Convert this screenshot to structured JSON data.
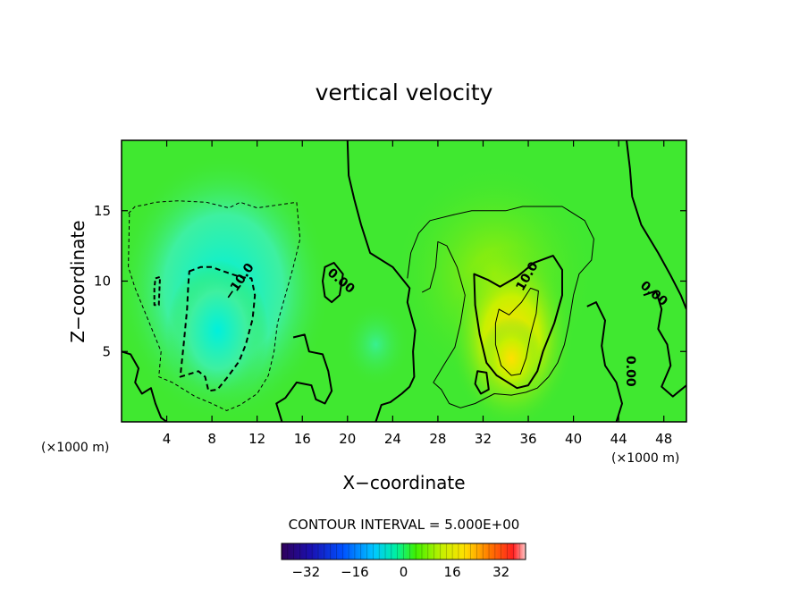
{
  "chart_data": {
    "type": "heatmap",
    "title": "vertical velocity",
    "xlabel": "X−coordinate",
    "ylabel": "Z−coordinate",
    "x_unit": "(×1000 m)",
    "xlim": [
      0,
      50
    ],
    "ylim": [
      0,
      20
    ],
    "xticks": [
      4,
      8,
      12,
      16,
      20,
      24,
      28,
      32,
      36,
      40,
      44,
      48
    ],
    "xtick_labels": [
      "4",
      "8",
      "12",
      "16",
      "20",
      "24",
      "28",
      "32",
      "36",
      "40",
      "44",
      "48"
    ],
    "yticks": [
      5,
      10,
      15
    ],
    "ytick_labels": [
      "5",
      "10",
      "15"
    ],
    "contour_interval_text": "CONTOUR INTERVAL = 5.000E+00",
    "contour_interval": 5.0,
    "contour_labels": [
      "−10.0",
      "10.0",
      "0.00",
      "0.00",
      "0.00"
    ],
    "colorbar": {
      "range": [
        -40,
        40
      ],
      "ticks": [
        -32,
        -16,
        0,
        16,
        32
      ],
      "tick_labels": [
        "−32",
        "−16",
        "0",
        "16",
        "32"
      ]
    },
    "features": [
      {
        "kind": "downdraft",
        "x": 8.5,
        "z": 6.5,
        "value": -14
      },
      {
        "kind": "updraft",
        "x": 34.5,
        "z": 5.5,
        "value": 17
      },
      {
        "kind": "updraft-weak",
        "x": 33,
        "z": 13,
        "value": 6
      }
    ]
  }
}
